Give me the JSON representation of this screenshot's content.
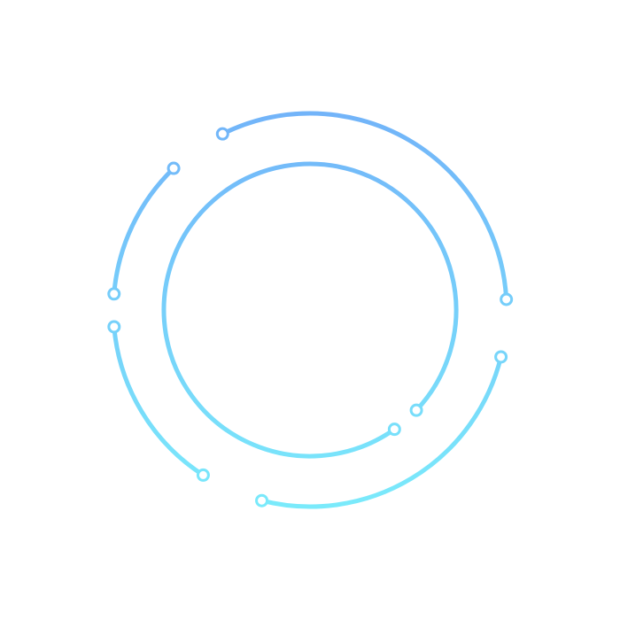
{
  "graphic": {
    "colors": {
      "background": "#ffffff",
      "gradient_top": "#72b4f9",
      "gradient_bottom": "#7aeafb",
      "node_fill": "#ffffff"
    }
  }
}
